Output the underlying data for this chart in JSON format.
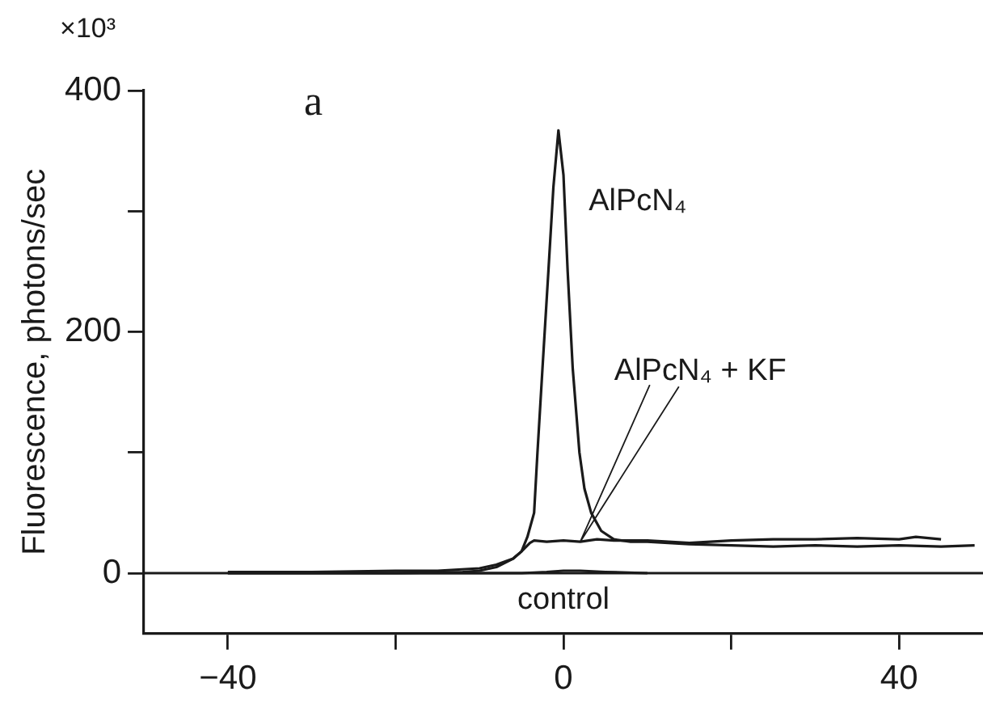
{
  "chart_data": {
    "type": "line",
    "title": "a",
    "ylabel": "Fluorescence, photons/sec",
    "annotations": [
      "×10³"
    ],
    "xlim": [
      -50,
      50
    ],
    "xticks": [
      -40,
      {
        "value": -20,
        "label": null
      },
      0,
      {
        "value": 20,
        "label": null
      },
      40
    ],
    "ylim": [
      -50,
      400
    ],
    "yticks": [
      0,
      {
        "value": 100,
        "label": null
      },
      200,
      {
        "value": 300,
        "label": null
      },
      400
    ],
    "grid": false,
    "legend": false,
    "marker": "none",
    "line_style": "solid",
    "ref_lines": [
      {
        "axis": "y",
        "value": 0,
        "color": "#1a1a1a"
      }
    ],
    "series": [
      {
        "name": "AlPcN₄",
        "color": "#1a1a1a",
        "x": [
          -40,
          -30,
          -20,
          -15,
          -10,
          -8,
          -6,
          -5,
          -4.3,
          -3.5,
          -3.1,
          -2.5,
          -1.8,
          -1.2,
          -0.6,
          0,
          0.5,
          1.1,
          1.9,
          2.5,
          3.3,
          4.5,
          6,
          8,
          10,
          15,
          20,
          25,
          30,
          35,
          40,
          45,
          49
        ],
        "values": [
          1,
          1,
          2,
          2,
          4,
          7,
          12,
          18,
          30,
          50,
          100,
          170,
          250,
          320,
          367,
          330,
          250,
          170,
          100,
          70,
          50,
          35,
          28,
          26,
          26,
          24,
          23,
          22,
          23,
          22,
          23,
          22,
          23
        ]
      },
      {
        "name": "AlPcN₄ + KF",
        "color": "#1a1a1a",
        "x": [
          -40,
          -20,
          -12,
          -10,
          -8,
          -6,
          -5,
          -4,
          -3.5,
          -2,
          0,
          2,
          4,
          6,
          10,
          15,
          20,
          25,
          30,
          35,
          40,
          42,
          45
        ],
        "values": [
          0,
          0,
          1,
          2,
          5,
          12,
          18,
          25,
          27,
          26,
          27,
          26,
          28,
          27,
          27,
          25,
          27,
          28,
          28,
          29,
          28,
          30,
          28
        ]
      },
      {
        "name": "control",
        "color": "#1a1a1a",
        "x": [
          -40,
          -5,
          -2,
          0,
          2,
          5,
          10
        ],
        "values": [
          0,
          0,
          1,
          2,
          2,
          1,
          0
        ]
      }
    ]
  }
}
